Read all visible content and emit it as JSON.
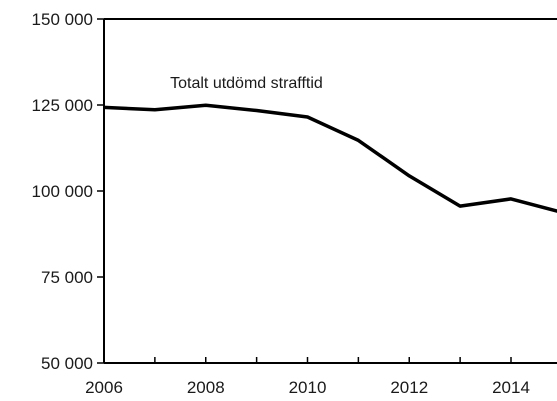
{
  "chart_data": {
    "type": "line",
    "title": "",
    "xlabel": "",
    "ylabel": "",
    "xlim": [
      2006,
      2015
    ],
    "ylim": [
      50000,
      150000
    ],
    "x_ticks": [
      2006,
      2008,
      2010,
      2012,
      2014
    ],
    "x_tick_labels": [
      "2006",
      "2008",
      "2010",
      "2012",
      "2014"
    ],
    "y_ticks": [
      50000,
      75000,
      100000,
      125000,
      150000
    ],
    "y_tick_labels": [
      "50 000",
      "75 000",
      "100 000",
      "125 000",
      "150 000"
    ],
    "grid": false,
    "series": [
      {
        "color": "#000000",
        "x": [
          2006,
          2007,
          2008,
          2009,
          2010,
          2011,
          2012,
          2013,
          2014,
          2015
        ],
        "values": [
          124300,
          123600,
          124900,
          123400,
          121500,
          114700,
          104400,
          95600,
          97700,
          93800
        ]
      }
    ],
    "annotations": [
      {
        "text": "Totalt  utdömd  strafftid",
        "x": 2007.3,
        "y": 130000
      }
    ]
  }
}
